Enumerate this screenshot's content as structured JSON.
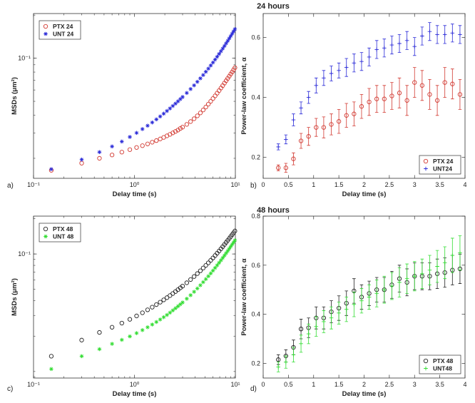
{
  "figure": {
    "title_top": "24 hours",
    "title_bottom": "48 hours"
  },
  "chart_data": [
    {
      "id": "a",
      "panel_label": "a)",
      "type": "scatter",
      "xscale": "log",
      "yscale": "log",
      "xlabel": "Delay time (s)",
      "ylabel": "MSDs (μm²)",
      "xlim": [
        0.1,
        10
      ],
      "ylim": [
        0.0145,
        0.205
      ],
      "xticks": [
        {
          "v": 0.1,
          "t": "10⁻¹"
        },
        {
          "v": 1,
          "t": "10⁰"
        },
        {
          "v": 10,
          "t": "10¹"
        }
      ],
      "yticks": [
        {
          "v": 0.1,
          "t": "10⁻¹"
        }
      ],
      "legend": "top-left",
      "series": [
        {
          "name": "PTX 24",
          "color": "#d23a32",
          "marker": "circle",
          "x": [
            0.15,
            0.3,
            0.45,
            0.6,
            0.75,
            0.9,
            1.05,
            1.2,
            1.35,
            1.5,
            1.65,
            1.8,
            1.95,
            2.1,
            2.25,
            2.4,
            2.55,
            2.7,
            2.85,
            3.0,
            3.3,
            3.6,
            3.9,
            4.2,
            4.5,
            4.8,
            5.1,
            5.4,
            5.7,
            6.0,
            6.3,
            6.6,
            6.9,
            7.2,
            7.5,
            7.8,
            8.1,
            8.4,
            8.7,
            9.0,
            9.3,
            9.6,
            9.9
          ],
          "y": [
            0.0165,
            0.0185,
            0.02,
            0.0211,
            0.0221,
            0.023,
            0.0238,
            0.0245,
            0.0252,
            0.0259,
            0.0266,
            0.0273,
            0.028,
            0.0287,
            0.0294,
            0.0301,
            0.0308,
            0.0315,
            0.0323,
            0.033,
            0.0345,
            0.0361,
            0.0378,
            0.0396,
            0.0415,
            0.0435,
            0.0456,
            0.0478,
            0.05,
            0.0523,
            0.0546,
            0.057,
            0.0594,
            0.0619,
            0.0644,
            0.067,
            0.0696,
            0.0722,
            0.0748,
            0.0775,
            0.0802,
            0.083,
            0.0858
          ]
        },
        {
          "name": "UNT 24",
          "color": "#2a2ad8",
          "marker": "star",
          "x": [
            0.15,
            0.3,
            0.45,
            0.6,
            0.75,
            0.9,
            1.05,
            1.2,
            1.35,
            1.5,
            1.65,
            1.8,
            1.95,
            2.1,
            2.25,
            2.4,
            2.55,
            2.7,
            2.85,
            3.0,
            3.3,
            3.6,
            3.9,
            4.2,
            4.5,
            4.8,
            5.1,
            5.4,
            5.7,
            6.0,
            6.3,
            6.6,
            6.9,
            7.2,
            7.5,
            7.8,
            8.1,
            8.4,
            8.7,
            9.0,
            9.3,
            9.6,
            9.9
          ],
          "y": [
            0.0168,
            0.0196,
            0.0221,
            0.0242,
            0.0262,
            0.0282,
            0.0301,
            0.032,
            0.0338,
            0.0356,
            0.0374,
            0.0392,
            0.041,
            0.0428,
            0.0446,
            0.0464,
            0.0482,
            0.05,
            0.0518,
            0.0536,
            0.0572,
            0.0609,
            0.0646,
            0.0684,
            0.0723,
            0.0763,
            0.0804,
            0.0846,
            0.0889,
            0.0933,
            0.0978,
            0.1024,
            0.1071,
            0.1119,
            0.1168,
            0.1218,
            0.1269,
            0.1321,
            0.1374,
            0.1428,
            0.1483,
            0.1539,
            0.1596
          ]
        }
      ]
    },
    {
      "id": "b",
      "panel_label": "b)",
      "type": "scatter",
      "xscale": "linear",
      "yscale": "linear",
      "xlabel": "Delay time (s)",
      "ylabel": "Power-law coefficient, α",
      "xlim": [
        0,
        4
      ],
      "ylim": [
        0.13,
        0.68
      ],
      "xticks": [
        {
          "v": 0,
          "t": "0"
        },
        {
          "v": 0.5,
          "t": "0.5"
        },
        {
          "v": 1,
          "t": "1"
        },
        {
          "v": 1.5,
          "t": "1.5"
        },
        {
          "v": 2,
          "t": "2"
        },
        {
          "v": 2.5,
          "t": "2.5"
        },
        {
          "v": 3,
          "t": "3"
        },
        {
          "v": 3.5,
          "t": "3.5"
        },
        {
          "v": 4,
          "t": "4"
        }
      ],
      "yticks": [
        {
          "v": 0.2,
          "t": "0.2"
        },
        {
          "v": 0.4,
          "t": "0.4"
        },
        {
          "v": 0.6,
          "t": "0.6"
        }
      ],
      "legend": "bottom-right",
      "series": [
        {
          "name": "PTX 24",
          "color": "#d23a32",
          "marker": "circle",
          "x": [
            0.3,
            0.45,
            0.6,
            0.75,
            0.9,
            1.05,
            1.2,
            1.35,
            1.5,
            1.65,
            1.8,
            1.95,
            2.1,
            2.25,
            2.4,
            2.55,
            2.7,
            2.85,
            3.0,
            3.15,
            3.3,
            3.45,
            3.6,
            3.75,
            3.9
          ],
          "y": [
            0.165,
            0.165,
            0.195,
            0.255,
            0.27,
            0.3,
            0.3,
            0.31,
            0.32,
            0.34,
            0.345,
            0.37,
            0.385,
            0.395,
            0.395,
            0.405,
            0.415,
            0.39,
            0.45,
            0.44,
            0.41,
            0.39,
            0.45,
            0.445,
            0.41
          ],
          "err": [
            0.01,
            0.015,
            0.02,
            0.025,
            0.03,
            0.03,
            0.035,
            0.035,
            0.04,
            0.04,
            0.04,
            0.04,
            0.045,
            0.045,
            0.045,
            0.045,
            0.05,
            0.05,
            0.05,
            0.05,
            0.05,
            0.05,
            0.05,
            0.05,
            0.05
          ]
        },
        {
          "name": "UNT24",
          "color": "#2a2ad8",
          "marker": "plus",
          "x": [
            0.3,
            0.45,
            0.6,
            0.75,
            0.9,
            1.05,
            1.2,
            1.35,
            1.5,
            1.65,
            1.8,
            1.95,
            2.1,
            2.25,
            2.4,
            2.55,
            2.7,
            2.85,
            3.0,
            3.15,
            3.3,
            3.45,
            3.6,
            3.75,
            3.9
          ],
          "y": [
            0.235,
            0.26,
            0.325,
            0.365,
            0.4,
            0.44,
            0.465,
            0.48,
            0.49,
            0.5,
            0.515,
            0.52,
            0.535,
            0.56,
            0.565,
            0.575,
            0.58,
            0.59,
            0.57,
            0.605,
            0.62,
            0.61,
            0.61,
            0.615,
            0.61
          ],
          "err": [
            0.01,
            0.015,
            0.02,
            0.02,
            0.02,
            0.025,
            0.025,
            0.025,
            0.025,
            0.03,
            0.03,
            0.03,
            0.03,
            0.03,
            0.03,
            0.03,
            0.03,
            0.03,
            0.03,
            0.03,
            0.03,
            0.03,
            0.03,
            0.03,
            0.03
          ]
        }
      ]
    },
    {
      "id": "c",
      "panel_label": "c)",
      "type": "scatter",
      "xscale": "log",
      "yscale": "log",
      "xlabel": "Delay time (s)",
      "ylabel": "MSDs (μm²)",
      "xlim": [
        0.1,
        10
      ],
      "ylim": [
        0.0088,
        0.21
      ],
      "xticks": [
        {
          "v": 0.1,
          "t": "10⁻¹"
        },
        {
          "v": 1,
          "t": "10⁰"
        },
        {
          "v": 10,
          "t": "10¹"
        }
      ],
      "yticks": [
        {
          "v": 0.1,
          "t": "10⁻¹"
        }
      ],
      "legend": "top-left",
      "series": [
        {
          "name": "PTX 48",
          "color": "#222222",
          "marker": "circle",
          "x": [
            0.15,
            0.3,
            0.45,
            0.6,
            0.75,
            0.9,
            1.05,
            1.2,
            1.35,
            1.5,
            1.65,
            1.8,
            1.95,
            2.1,
            2.25,
            2.4,
            2.55,
            2.7,
            2.85,
            3.0,
            3.3,
            3.6,
            3.9,
            4.2,
            4.5,
            4.8,
            5.1,
            5.4,
            5.7,
            6.0,
            6.3,
            6.6,
            6.9,
            7.2,
            7.5,
            7.8,
            8.1,
            8.4,
            8.7,
            9.0,
            9.3,
            9.6,
            9.9
          ],
          "y": [
            0.0135,
            0.0185,
            0.0215,
            0.0238,
            0.0258,
            0.0278,
            0.0297,
            0.0316,
            0.0335,
            0.0353,
            0.0371,
            0.0389,
            0.0407,
            0.0425,
            0.0443,
            0.0461,
            0.0479,
            0.0497,
            0.0515,
            0.0533,
            0.0569,
            0.0606,
            0.0643,
            0.0681,
            0.072,
            0.076,
            0.08,
            0.0841,
            0.0883,
            0.0926,
            0.097,
            0.1015,
            0.1061,
            0.1108,
            0.1156,
            0.1205,
            0.1255,
            0.1305,
            0.1356,
            0.1408,
            0.1461,
            0.1515,
            0.157
          ]
        },
        {
          "name": "UNT 48",
          "color": "#33dd33",
          "marker": "star",
          "x": [
            0.15,
            0.3,
            0.45,
            0.6,
            0.75,
            0.9,
            1.05,
            1.2,
            1.35,
            1.5,
            1.65,
            1.8,
            1.95,
            2.1,
            2.25,
            2.4,
            2.55,
            2.7,
            2.85,
            3.0,
            3.3,
            3.6,
            3.9,
            4.2,
            4.5,
            4.8,
            5.1,
            5.4,
            5.7,
            6.0,
            6.3,
            6.6,
            6.9,
            7.2,
            7.5,
            7.8,
            8.1,
            8.4,
            8.7,
            9.0,
            9.3,
            9.6,
            9.9
          ],
          "y": [
            0.0105,
            0.0135,
            0.0155,
            0.0172,
            0.0186,
            0.0199,
            0.0212,
            0.0225,
            0.0238,
            0.0251,
            0.0264,
            0.0277,
            0.029,
            0.0303,
            0.0317,
            0.0331,
            0.0345,
            0.0359,
            0.0373,
            0.0387,
            0.0416,
            0.0446,
            0.0477,
            0.0509,
            0.0542,
            0.0576,
            0.0611,
            0.0647,
            0.0684,
            0.0722,
            0.0761,
            0.0801,
            0.0842,
            0.0884,
            0.0927,
            0.0971,
            0.1016,
            0.1062,
            0.1109,
            0.1157,
            0.1206,
            0.1256,
            0.1307
          ]
        }
      ]
    },
    {
      "id": "d",
      "panel_label": "d)",
      "type": "scatter",
      "xscale": "linear",
      "yscale": "linear",
      "xlabel": "Delay time (s)",
      "ylabel": "Power-law coefficient, α",
      "xlim": [
        0,
        4
      ],
      "ylim": [
        0.14,
        0.8
      ],
      "xticks": [
        {
          "v": 0,
          "t": "0"
        },
        {
          "v": 0.5,
          "t": "0.5"
        },
        {
          "v": 1,
          "t": "1"
        },
        {
          "v": 1.5,
          "t": "1.5"
        },
        {
          "v": 2,
          "t": "2"
        },
        {
          "v": 2.5,
          "t": "2.5"
        },
        {
          "v": 3,
          "t": "3"
        },
        {
          "v": 3.5,
          "t": "3.5"
        },
        {
          "v": 4,
          "t": "4"
        }
      ],
      "yticks": [
        {
          "v": 0.2,
          "t": "0.2"
        },
        {
          "v": 0.4,
          "t": "0.4"
        },
        {
          "v": 0.6,
          "t": "0.6"
        },
        {
          "v": 0.8,
          "t": "0.8"
        }
      ],
      "legend": "bottom-right",
      "series": [
        {
          "name": "PTX 48",
          "color": "#222222",
          "marker": "circle",
          "x": [
            0.3,
            0.45,
            0.6,
            0.75,
            0.9,
            1.05,
            1.2,
            1.35,
            1.5,
            1.65,
            1.8,
            1.95,
            2.1,
            2.25,
            2.4,
            2.55,
            2.7,
            2.85,
            3.0,
            3.15,
            3.3,
            3.45,
            3.6,
            3.75,
            3.9
          ],
          "y": [
            0.215,
            0.23,
            0.265,
            0.34,
            0.345,
            0.385,
            0.385,
            0.41,
            0.425,
            0.445,
            0.495,
            0.47,
            0.485,
            0.5,
            0.5,
            0.52,
            0.545,
            0.53,
            0.555,
            0.555,
            0.555,
            0.565,
            0.57,
            0.58,
            0.585
          ],
          "err": [
            0.02,
            0.025,
            0.03,
            0.04,
            0.04,
            0.045,
            0.045,
            0.045,
            0.05,
            0.05,
            0.05,
            0.05,
            0.05,
            0.05,
            0.05,
            0.055,
            0.055,
            0.055,
            0.055,
            0.055,
            0.055,
            0.06,
            0.06,
            0.06,
            0.06
          ]
        },
        {
          "name": "UNT48",
          "color": "#33dd33",
          "marker": "plus",
          "x": [
            0.3,
            0.45,
            0.6,
            0.75,
            0.9,
            1.05,
            1.2,
            1.35,
            1.5,
            1.65,
            1.8,
            1.95,
            2.1,
            2.25,
            2.4,
            2.55,
            2.7,
            2.85,
            3.0,
            3.15,
            3.3,
            3.45,
            3.6,
            3.75,
            3.9
          ],
          "y": [
            0.185,
            0.205,
            0.235,
            0.28,
            0.32,
            0.35,
            0.37,
            0.385,
            0.405,
            0.42,
            0.44,
            0.455,
            0.47,
            0.485,
            0.5,
            0.515,
            0.53,
            0.545,
            0.555,
            0.565,
            0.58,
            0.595,
            0.61,
            0.64,
            0.65
          ],
          "err": [
            0.02,
            0.025,
            0.03,
            0.035,
            0.04,
            0.04,
            0.045,
            0.045,
            0.045,
            0.05,
            0.05,
            0.05,
            0.05,
            0.055,
            0.055,
            0.055,
            0.06,
            0.06,
            0.06,
            0.06,
            0.06,
            0.065,
            0.065,
            0.07,
            0.07
          ]
        }
      ]
    }
  ]
}
